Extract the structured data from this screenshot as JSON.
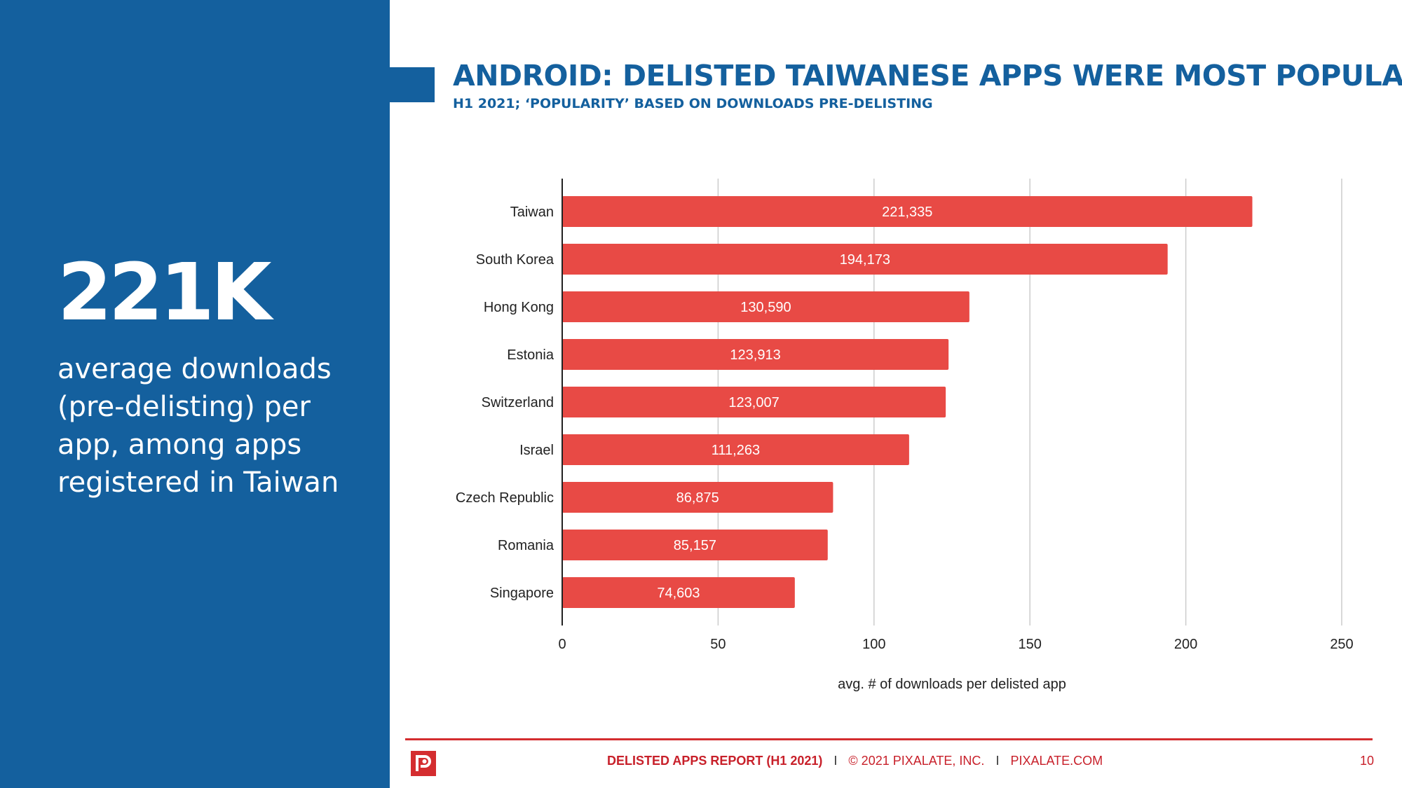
{
  "stat": {
    "value": "221K",
    "description": "average downloads (pre-delisting) per app, among apps registered in Taiwan"
  },
  "header": {
    "title": "ANDROID: DELISTED TAIWANESE APPS WERE MOST POPULAR",
    "subtitle": "H1 2021; ‘POPULARITY’ BASED ON DOWNLOADS PRE-DELISTING"
  },
  "chart_data": {
    "type": "bar",
    "orientation": "horizontal",
    "categories": [
      "Taiwan",
      "South Korea",
      "Hong Kong",
      "Estonia",
      "Switzerland",
      "Israel",
      "Czech Republic",
      "Romania",
      "Singapore"
    ],
    "values": [
      221.335,
      194.173,
      130.59,
      123.913,
      123.007,
      111.263,
      86.875,
      85.157,
      74.603
    ],
    "data_labels": [
      "221,335",
      "194,173",
      "130,590",
      "123,913",
      "123,007",
      "111,263",
      "86,875",
      "85,157",
      "74,603"
    ],
    "xlabel": "avg. # of downloads per delisted app",
    "ylabel": "",
    "xlim": [
      0,
      250
    ],
    "xticks": [
      0,
      50,
      100,
      150,
      200,
      250
    ],
    "grid": true,
    "bar_color": "#e84a45",
    "grid_color": "#cccccc"
  },
  "footer": {
    "report": "DELISTED APPS REPORT (H1 2021)",
    "separator": "I",
    "copyright": "© 2021 PIXALATE, INC.",
    "site": "PIXALATE.COM",
    "page": "10"
  },
  "colors": {
    "brand_blue": "#14609e",
    "brand_red": "#d42d2f"
  }
}
